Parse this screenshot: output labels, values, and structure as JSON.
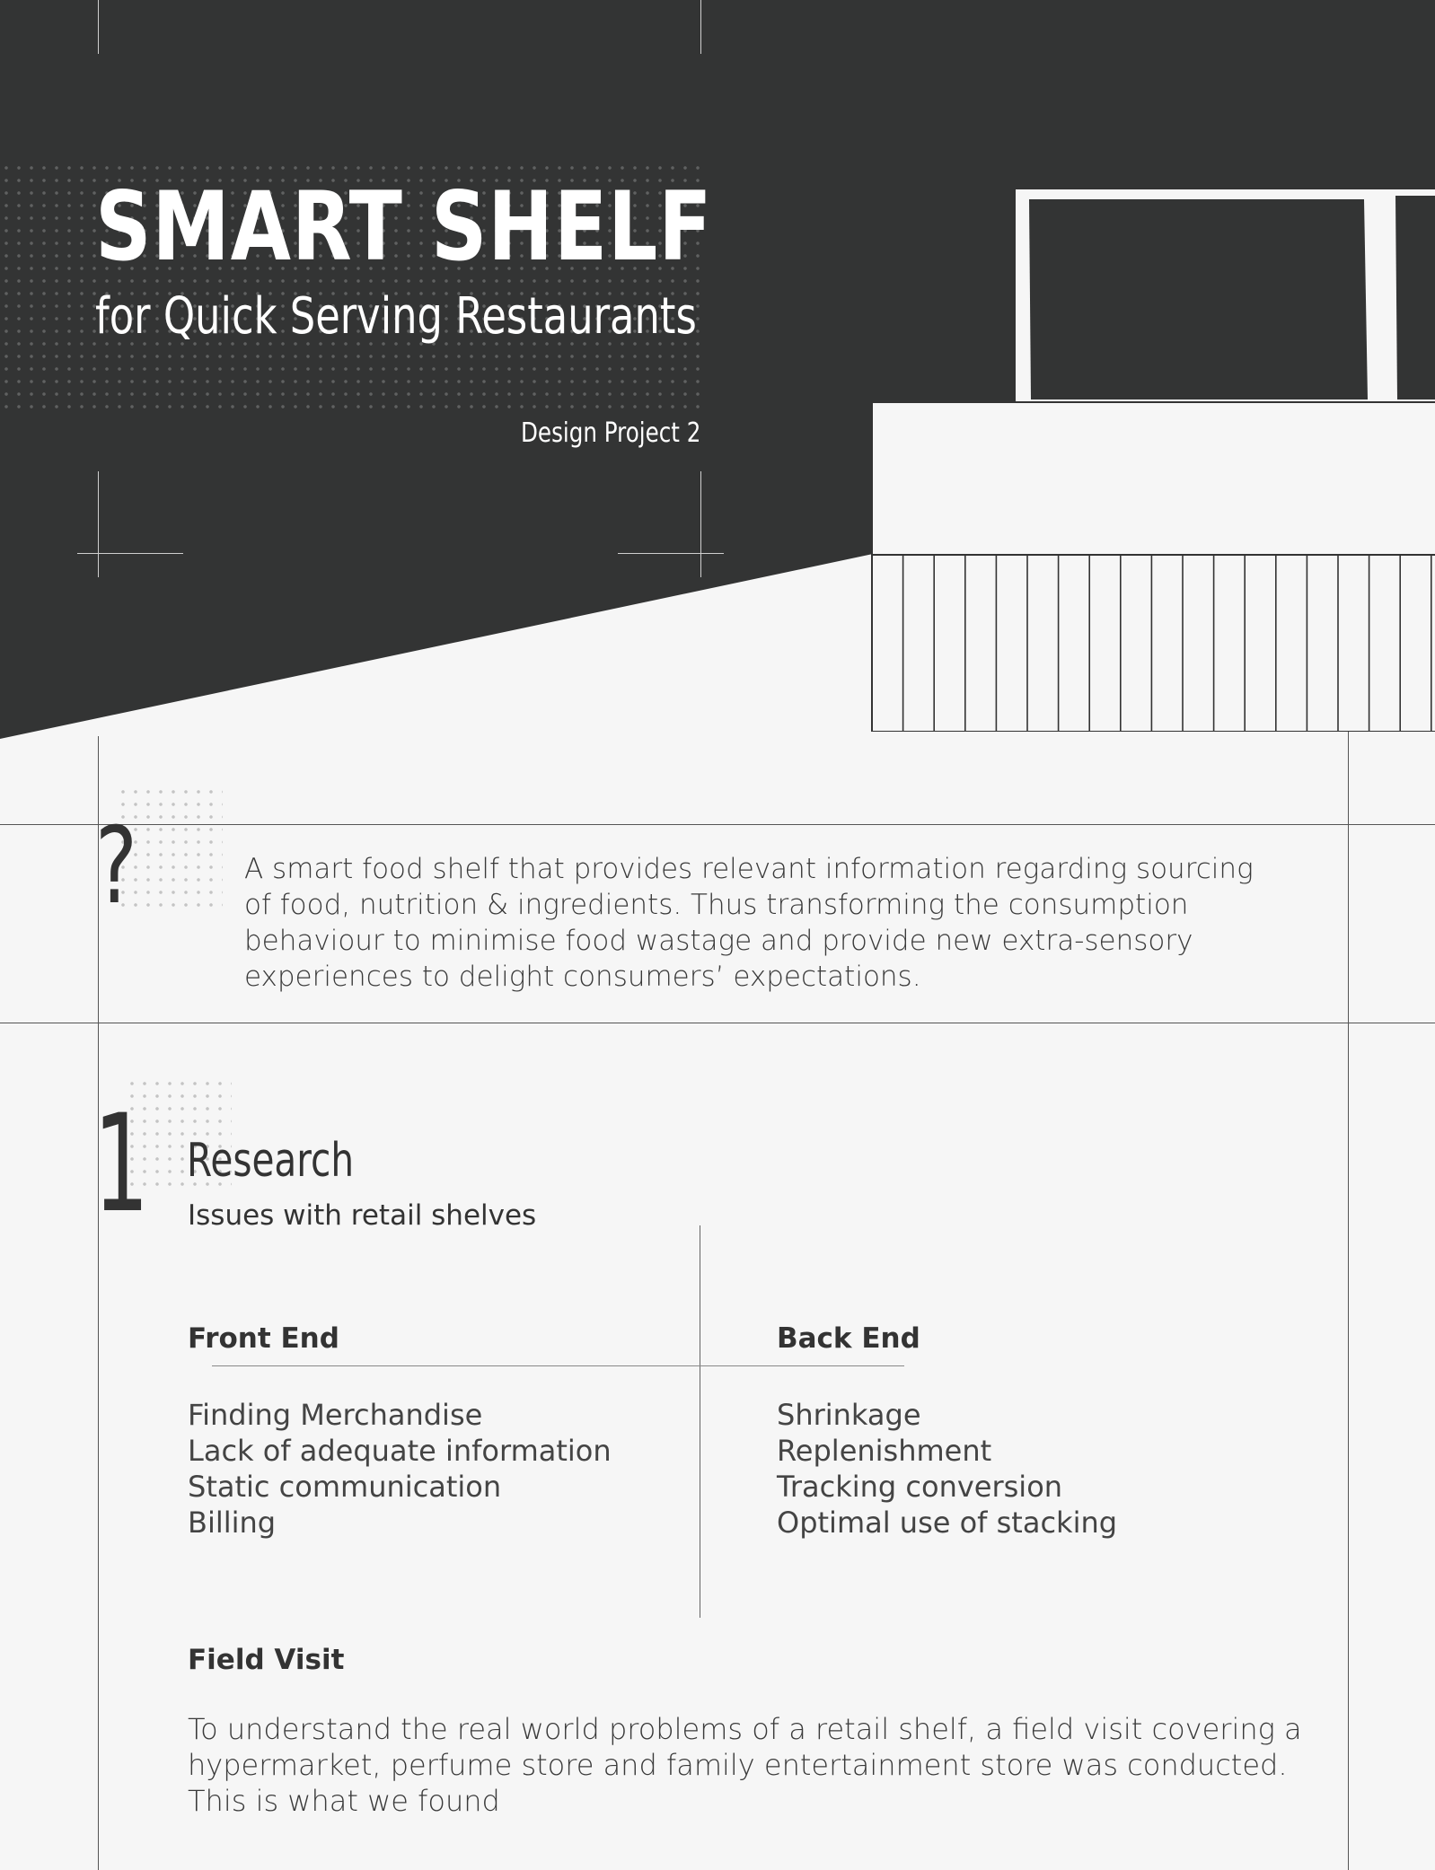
{
  "header": {
    "title": "SMART SHELF",
    "subtitle": "for Quick Serving Restaurants",
    "project": "Design Project 2"
  },
  "question": {
    "mark": "?",
    "text": "A smart food shelf that provides relevant information regarding sourcing of food, nutrition & ingredients. Thus transforming the consumption behaviour to minimise food wastage and provide new extra-sensory experiences to delight consumers’ expectations."
  },
  "research": {
    "number": "1",
    "title": "Research",
    "subtitle": "Issues with retail shelves",
    "front_end": {
      "heading": "Front End",
      "items": [
        "Finding Merchandise",
        "Lack of adequate information",
        "Static communication",
        "Billing"
      ]
    },
    "back_end": {
      "heading": "Back End",
      "items": [
        "Shrinkage",
        "Replenishment",
        "Tracking conversion",
        "Optimal use of stacking"
      ]
    }
  },
  "field_visit": {
    "heading": "Field Visit",
    "text": "To understand the real world problems of a retail shelf, a field visit covering a hypermarket, perfume store and family entertainment store was conducted. This is what we found"
  },
  "colors": {
    "dark": "#333434",
    "background": "#f6f6f6",
    "text": "#333333"
  }
}
